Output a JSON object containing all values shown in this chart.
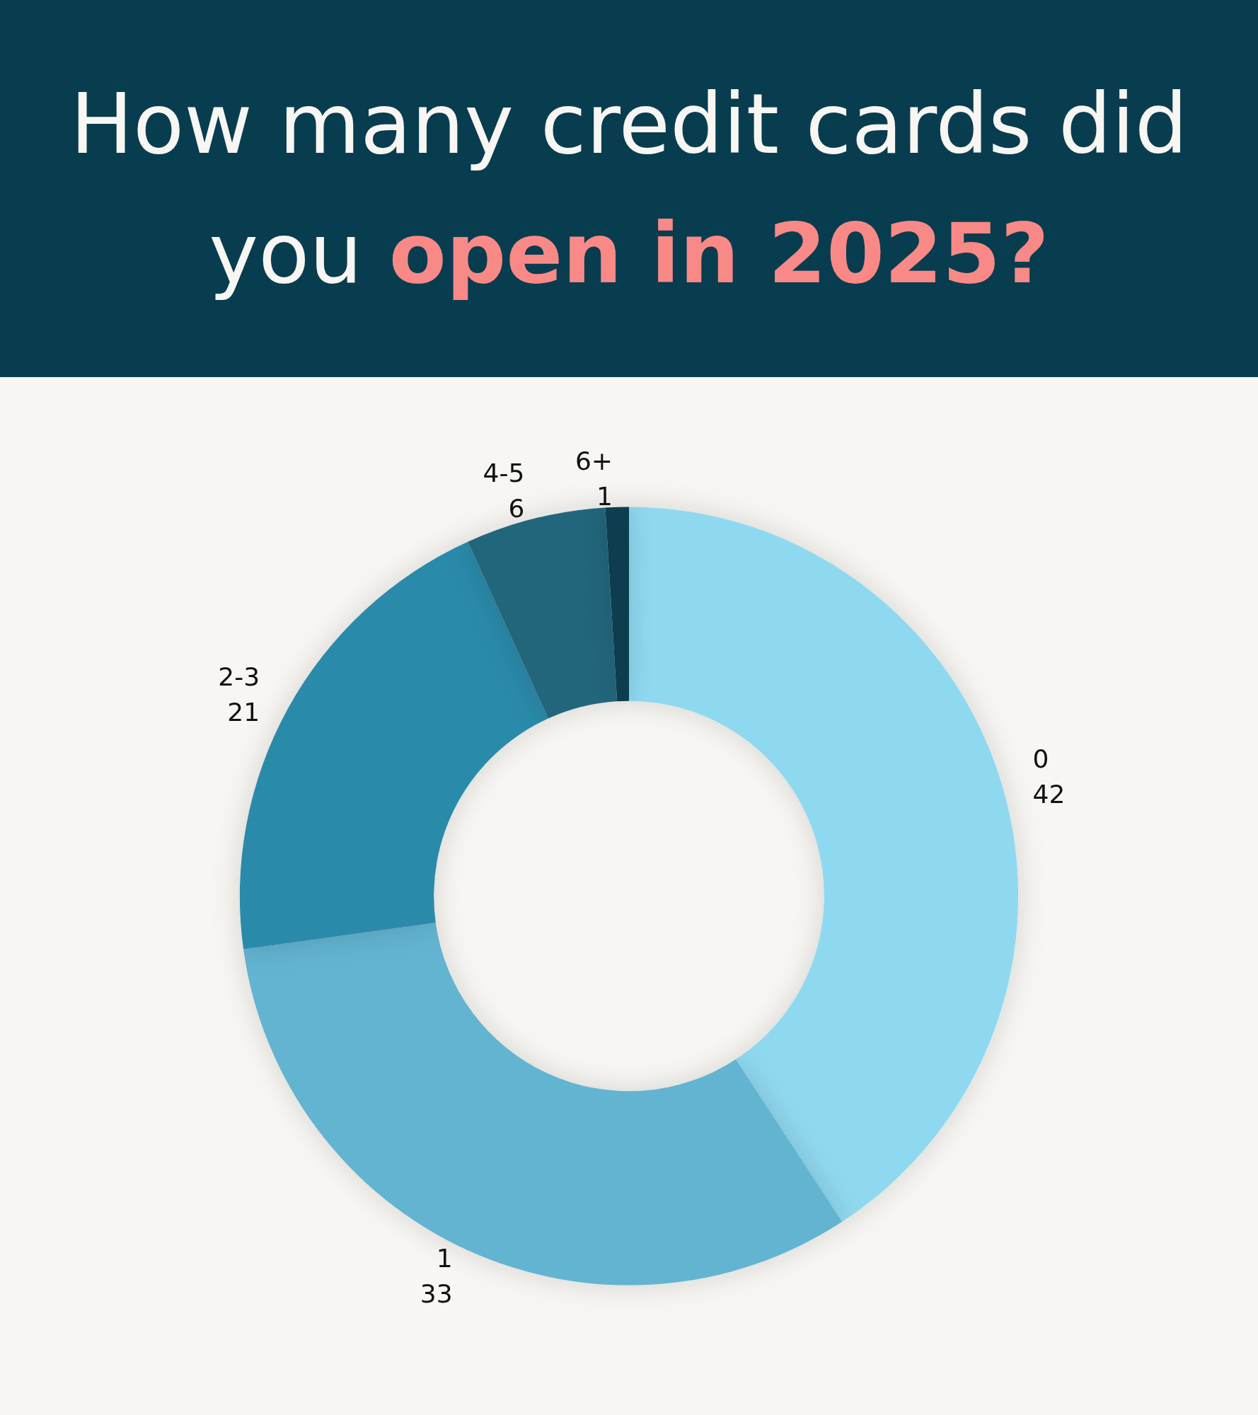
{
  "chart_data": {
    "type": "donut",
    "title": "How many credit cards did you open in 2025?",
    "categories": [
      "0",
      "1",
      "2-3",
      "4-5",
      "6+"
    ],
    "values": [
      42,
      33,
      21,
      6,
      1
    ],
    "colors": [
      "#8fd9f0",
      "#62b4d1",
      "#2a8aaa",
      "#21667c",
      "#083d50"
    ],
    "data_labels": true,
    "legend": false
  }
}
